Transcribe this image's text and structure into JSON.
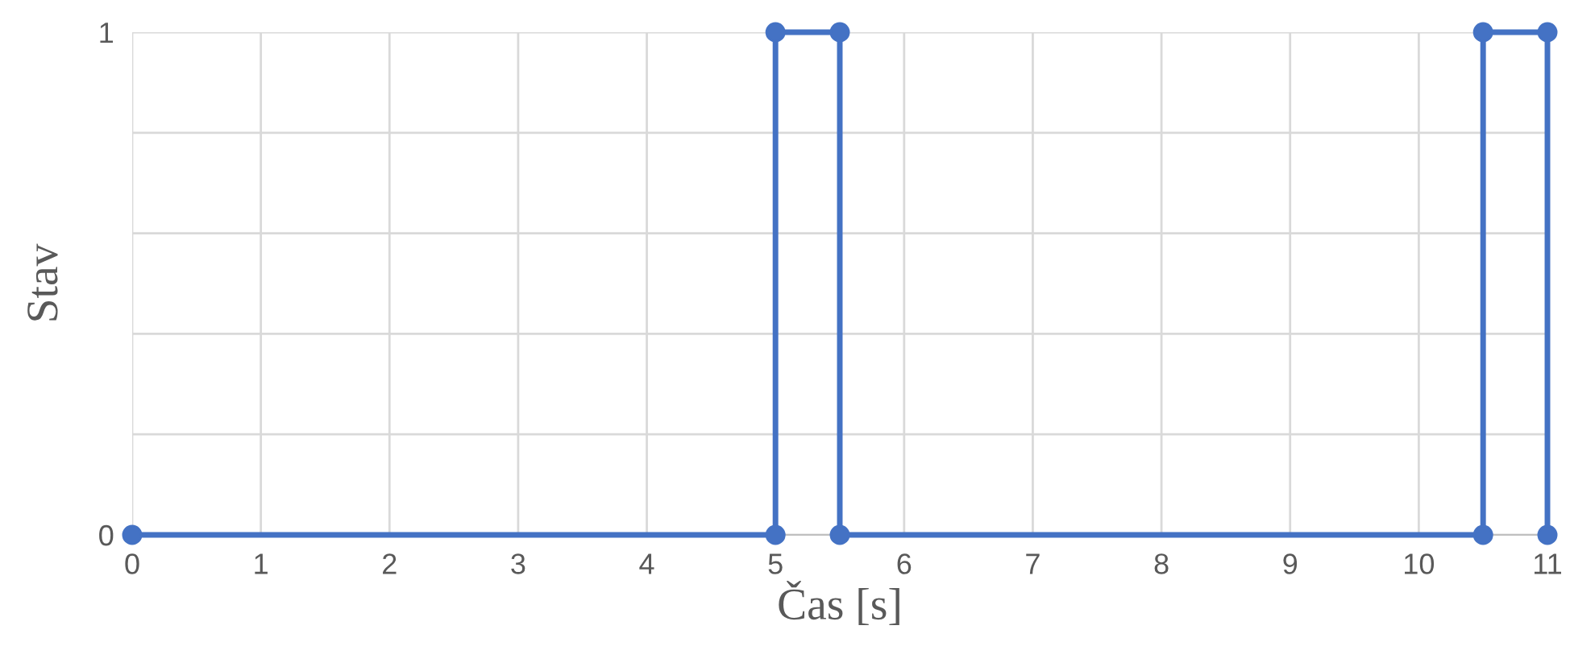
{
  "chart_data": {
    "type": "line",
    "xlabel": "Čas [s]",
    "ylabel": "Stav",
    "x": [
      0,
      5,
      5,
      5.5,
      5.5,
      10.5,
      10.5,
      11,
      11
    ],
    "series": [
      {
        "color": "#4472c4",
        "values": [
          0,
          0,
          1,
          1,
          0,
          0,
          1,
          1,
          0
        ]
      }
    ],
    "xlim": [
      0,
      11
    ],
    "ylim": [
      0,
      1
    ],
    "xticks": [
      0,
      1,
      2,
      3,
      4,
      5,
      6,
      7,
      8,
      9,
      10,
      11
    ],
    "yticks": [
      0,
      {
        "value": 0.2,
        "label": null
      },
      {
        "value": 0.4,
        "label": null
      },
      {
        "value": 0.6,
        "label": null
      },
      {
        "value": 0.8,
        "label": null
      },
      1
    ],
    "grid": true,
    "marker": "circle",
    "line_style": "solid",
    "legend": false
  }
}
